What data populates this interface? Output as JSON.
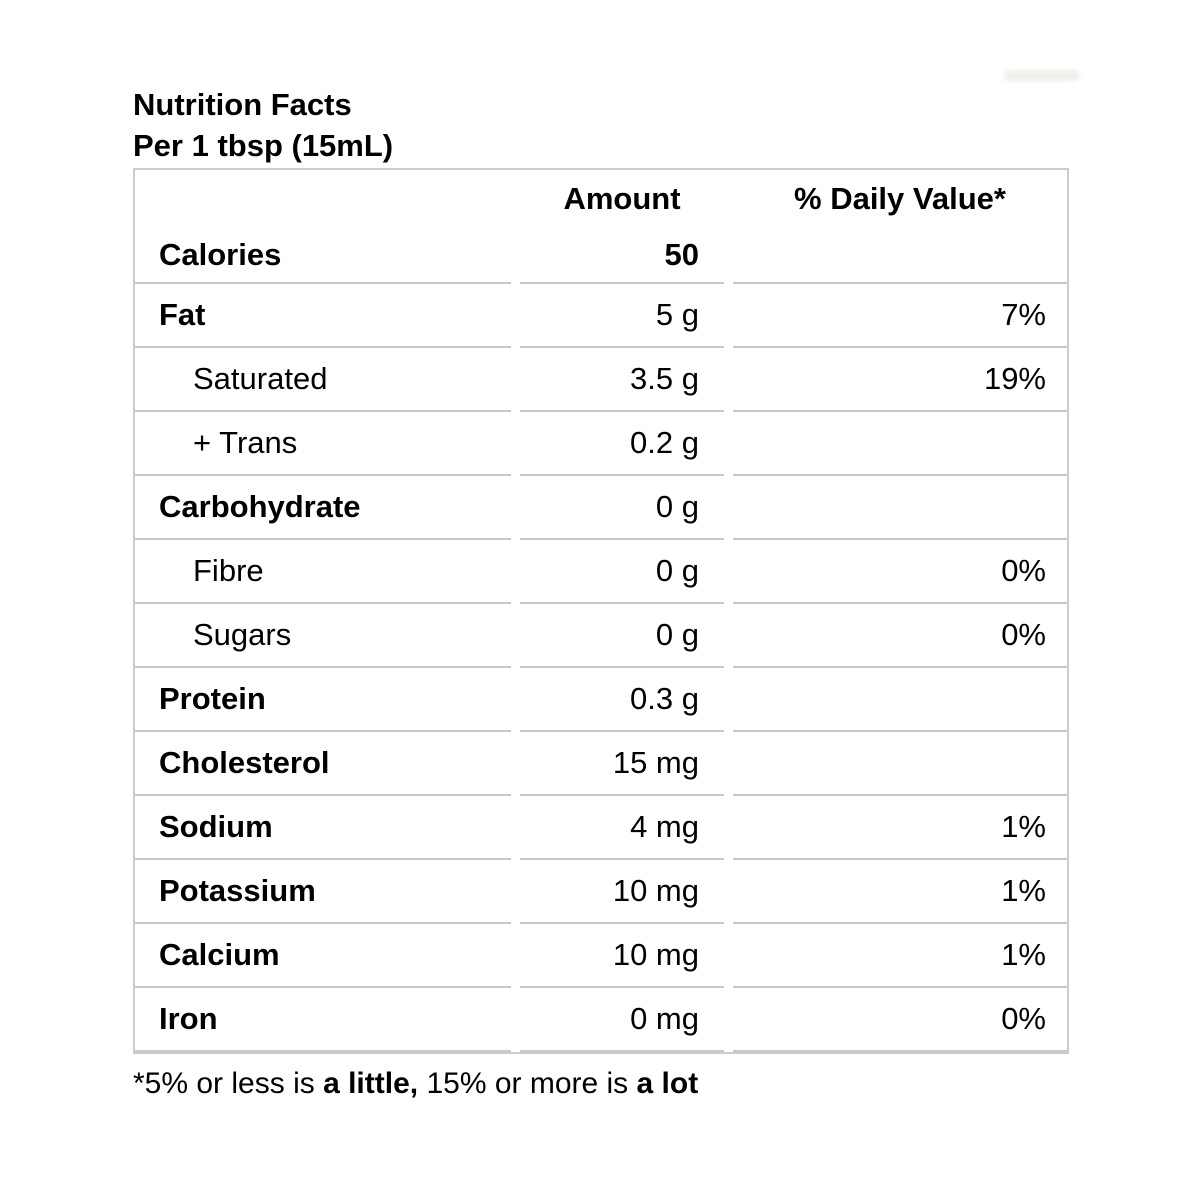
{
  "header": {
    "title": "Nutrition Facts",
    "serving": "Per 1 tbsp (15mL)"
  },
  "table": {
    "columns": {
      "amount": "Amount",
      "daily_value": "% Daily Value*"
    },
    "rows": [
      {
        "label": "Calories",
        "amount": "50",
        "dv": ""
      },
      {
        "label": "Fat",
        "amount": "5 g",
        "dv": "7%"
      },
      {
        "label": "Saturated",
        "amount": "3.5 g",
        "dv": "19%"
      },
      {
        "label": "+ Trans",
        "amount": "0.2 g",
        "dv": ""
      },
      {
        "label": "Carbohydrate",
        "amount": "0 g",
        "dv": ""
      },
      {
        "label": "Fibre",
        "amount": "0 g",
        "dv": "0%"
      },
      {
        "label": "Sugars",
        "amount": "0 g",
        "dv": "0%"
      },
      {
        "label": "Protein",
        "amount": "0.3 g",
        "dv": ""
      },
      {
        "label": "Cholesterol",
        "amount": "15 mg",
        "dv": ""
      },
      {
        "label": "Sodium",
        "amount": "4 mg",
        "dv": "1%"
      },
      {
        "label": "Potassium",
        "amount": "10 mg",
        "dv": "1%"
      },
      {
        "label": "Calcium",
        "amount": "10 mg",
        "dv": "1%"
      },
      {
        "label": "Iron",
        "amount": "0 mg",
        "dv": "0%"
      }
    ]
  },
  "footnote": {
    "part1": "*5% or less is ",
    "bold1": "a little,",
    "part2": " 15% or more is ",
    "bold2": "a lot"
  },
  "colors": {
    "border": "#cccccc",
    "separator": "#c9c9c9",
    "text": "#000000"
  }
}
